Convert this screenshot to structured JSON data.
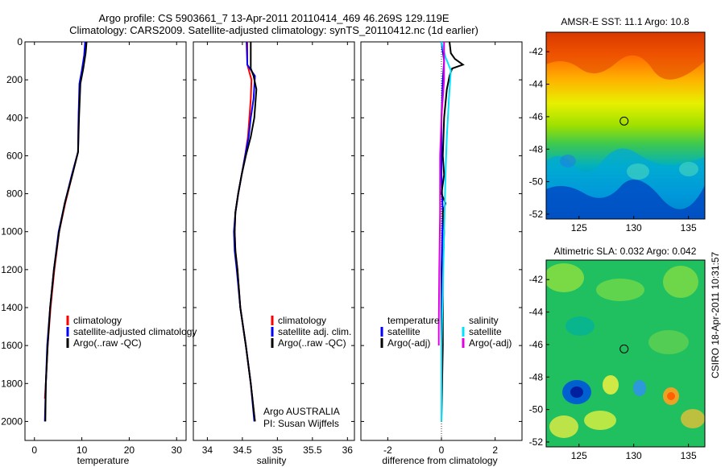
{
  "header": {
    "line1": "Argo profile: CS 5903661_7 13-Apr-2011 20110414_469 46.269S 129.119E",
    "line2": "Climatology: CARS2009. Satellite-adjusted climatology: synTS_20110412.nc (1d earlier)"
  },
  "side_text": "CSIRO 18-Apr-2011 10:31:57",
  "chart_data": [
    {
      "id": "temperature",
      "type": "line",
      "xlabel": "temperature",
      "ylabel": "",
      "xlim": [
        -2,
        32
      ],
      "ylim": [
        2100,
        0
      ],
      "xticks": [
        0,
        10,
        20,
        30
      ],
      "yticks": [
        0,
        200,
        400,
        600,
        800,
        1000,
        1200,
        1400,
        1600,
        1800,
        2000
      ],
      "legend": [
        {
          "label": "climatology",
          "color": "#ff0000"
        },
        {
          "label": "satellite-adjusted climatology",
          "color": "#0000ff"
        },
        {
          "label": "Argo(..raw -QC)",
          "color": "#000000"
        }
      ],
      "series": [
        {
          "name": "climatology",
          "color": "#ff0000",
          "points": [
            [
              10.9,
              0
            ],
            [
              10.6,
              70
            ],
            [
              10.2,
              150
            ],
            [
              9.6,
              220
            ],
            [
              9.3,
              400
            ],
            [
              9.2,
              580
            ],
            [
              8.0,
              700
            ],
            [
              6.5,
              850
            ],
            [
              5.2,
              1000
            ],
            [
              4.2,
              1200
            ],
            [
              3.4,
              1400
            ],
            [
              2.8,
              1600
            ],
            [
              2.4,
              1800
            ],
            [
              2.2,
              1880
            ]
          ]
        },
        {
          "name": "satellite-adjusted climatology",
          "color": "#0000ff",
          "points": [
            [
              10.7,
              0
            ],
            [
              10.5,
              70
            ],
            [
              10.0,
              150
            ],
            [
              9.5,
              220
            ],
            [
              9.3,
              400
            ],
            [
              9.2,
              580
            ],
            [
              7.9,
              700
            ],
            [
              6.4,
              850
            ],
            [
              5.1,
              1000
            ],
            [
              4.1,
              1200
            ],
            [
              3.3,
              1400
            ],
            [
              2.7,
              1600
            ],
            [
              2.4,
              1800
            ],
            [
              2.2,
              2000
            ]
          ]
        },
        {
          "name": "Argo(..raw -QC)",
          "color": "#000000",
          "points": [
            [
              11.0,
              0
            ],
            [
              10.8,
              60
            ],
            [
              10.3,
              140
            ],
            [
              9.7,
              220
            ],
            [
              9.4,
              400
            ],
            [
              9.2,
              580
            ],
            [
              8.0,
              700
            ],
            [
              6.4,
              850
            ],
            [
              5.2,
              1000
            ],
            [
              4.1,
              1200
            ],
            [
              3.3,
              1400
            ],
            [
              2.8,
              1600
            ],
            [
              2.4,
              1800
            ],
            [
              2.3,
              2000
            ]
          ]
        }
      ]
    },
    {
      "id": "salinity",
      "type": "line",
      "xlabel": "salinity",
      "ylabel": "",
      "xlim": [
        33.8,
        36.1
      ],
      "ylim": [
        2100,
        0
      ],
      "xticks": [
        34,
        34.5,
        35,
        35.5,
        36
      ],
      "legend": [
        {
          "label": "climatology",
          "color": "#ff0000"
        },
        {
          "label": "satellite adj. clim.",
          "color": "#0000ff"
        },
        {
          "label": "Argo(..raw -QC)",
          "color": "#000000"
        }
      ],
      "annotation": [
        "Argo AUSTRALIA",
        "PI: Susan Wijffels"
      ],
      "series": [
        {
          "name": "climatology",
          "color": "#ff0000",
          "points": [
            [
              34.57,
              0
            ],
            [
              34.57,
              120
            ],
            [
              34.63,
              200
            ],
            [
              34.62,
              300
            ],
            [
              34.6,
              400
            ],
            [
              34.58,
              500
            ],
            [
              34.54,
              600
            ],
            [
              34.49,
              700
            ],
            [
              34.44,
              800
            ],
            [
              34.4,
              900
            ],
            [
              34.39,
              1000
            ],
            [
              34.4,
              1100
            ],
            [
              34.43,
              1200
            ],
            [
              34.47,
              1400
            ],
            [
              34.55,
              1600
            ],
            [
              34.62,
              1800
            ],
            [
              34.68,
              2000
            ]
          ]
        },
        {
          "name": "satellite adj. clim.",
          "color": "#0000ff",
          "points": [
            [
              34.56,
              0
            ],
            [
              34.57,
              120
            ],
            [
              34.68,
              180
            ],
            [
              34.66,
              300
            ],
            [
              34.62,
              400
            ],
            [
              34.59,
              500
            ],
            [
              34.54,
              600
            ],
            [
              34.49,
              700
            ],
            [
              34.44,
              800
            ],
            [
              34.4,
              900
            ],
            [
              34.38,
              1000
            ],
            [
              34.39,
              1100
            ],
            [
              34.42,
              1200
            ],
            [
              34.47,
              1400
            ],
            [
              34.55,
              1600
            ],
            [
              34.62,
              1800
            ],
            [
              34.67,
              2000
            ]
          ]
        },
        {
          "name": "Argo(..raw -QC)",
          "color": "#000000",
          "points": [
            [
              34.62,
              0
            ],
            [
              34.62,
              140
            ],
            [
              34.66,
              180
            ],
            [
              34.7,
              250
            ],
            [
              34.67,
              400
            ],
            [
              34.62,
              500
            ],
            [
              34.55,
              600
            ],
            [
              34.49,
              700
            ],
            [
              34.44,
              800
            ],
            [
              34.4,
              900
            ],
            [
              34.39,
              1000
            ],
            [
              34.4,
              1100
            ],
            [
              34.43,
              1200
            ],
            [
              34.47,
              1400
            ],
            [
              34.55,
              1600
            ],
            [
              34.62,
              1800
            ],
            [
              34.68,
              2000
            ]
          ]
        }
      ]
    },
    {
      "id": "difference",
      "type": "line",
      "xlabel": "difference from climatology",
      "ylabel": "",
      "xlim": [
        -3,
        3
      ],
      "ylim": [
        2100,
        0
      ],
      "xticks": [
        -2,
        0,
        2
      ],
      "legend_headers": [
        "temperature",
        "salinity"
      ],
      "legend": [
        {
          "label": "satellite",
          "color": "#0000ff",
          "group": "temperature"
        },
        {
          "label": "Argo(-adj)",
          "color": "#000000",
          "group": "temperature"
        },
        {
          "label": "satellite",
          "color": "#00e0ff",
          "group": "salinity"
        },
        {
          "label": "Argo(-adj)",
          "color": "#e000e0",
          "group": "salinity"
        }
      ],
      "series": [
        {
          "name": "temperature satellite",
          "color": "#0000ff",
          "points": [
            [
              0.0,
              0
            ],
            [
              0.1,
              100
            ],
            [
              0.05,
              200
            ],
            [
              0.0,
              400
            ],
            [
              0.0,
              700
            ],
            [
              0.05,
              900
            ],
            [
              0.0,
              1200
            ],
            [
              0.0,
              1600
            ],
            [
              0.0,
              2000
            ]
          ]
        },
        {
          "name": "temperature Argo(-adj)",
          "color": "#000000",
          "points": [
            [
              0.3,
              0
            ],
            [
              0.35,
              60
            ],
            [
              0.5,
              90
            ],
            [
              0.8,
              120
            ],
            [
              0.4,
              140
            ],
            [
              0.3,
              180
            ],
            [
              0.2,
              250
            ],
            [
              0.1,
              400
            ],
            [
              0.05,
              600
            ],
            [
              0.1,
              700
            ],
            [
              0.0,
              800
            ],
            [
              0.15,
              850
            ],
            [
              0.05,
              900
            ],
            [
              0.1,
              1000
            ],
            [
              0.05,
              1200
            ],
            [
              0.05,
              1600
            ],
            [
              0.0,
              2000
            ]
          ]
        },
        {
          "name": "salinity satellite",
          "color": "#00e0ff",
          "points": [
            [
              0.0,
              0
            ],
            [
              0.15,
              80
            ],
            [
              0.35,
              150
            ],
            [
              0.28,
              300
            ],
            [
              0.2,
              500
            ],
            [
              0.15,
              700
            ],
            [
              0.1,
              1000
            ],
            [
              0.05,
              1300
            ],
            [
              0.0,
              1600
            ],
            [
              0.0,
              2000
            ]
          ]
        },
        {
          "name": "salinity Argo(-adj)",
          "color": "#e000e0",
          "points": [
            [
              0.1,
              0
            ],
            [
              0.1,
              200
            ],
            [
              0.0,
              400
            ],
            [
              -0.05,
              600
            ],
            [
              -0.05,
              900
            ],
            [
              -0.08,
              1200
            ],
            [
              -0.1,
              1500
            ],
            [
              -0.1,
              1600
            ]
          ]
        }
      ]
    },
    {
      "id": "sst_map",
      "type": "heatmap",
      "title": "AMSR-E SST: 11.1 Argo: 10.8",
      "xlim": [
        122,
        136.5
      ],
      "ylim": [
        -52.3,
        -40.8
      ],
      "xticks": [
        125,
        130,
        135
      ],
      "yticks": [
        -42,
        -44,
        -46,
        -48,
        -50,
        -52
      ],
      "marker": [
        129.119,
        -46.269
      ]
    },
    {
      "id": "sla_map",
      "type": "heatmap",
      "title": "Altimetric SLA: 0.032 Argo: 0.042",
      "xlim": [
        122,
        136.5
      ],
      "ylim": [
        -52.3,
        -40.8
      ],
      "xticks": [
        125,
        130,
        135
      ],
      "yticks": [
        -42,
        -44,
        -46,
        -48,
        -50,
        -52
      ],
      "marker": [
        129.119,
        -46.269
      ]
    }
  ]
}
